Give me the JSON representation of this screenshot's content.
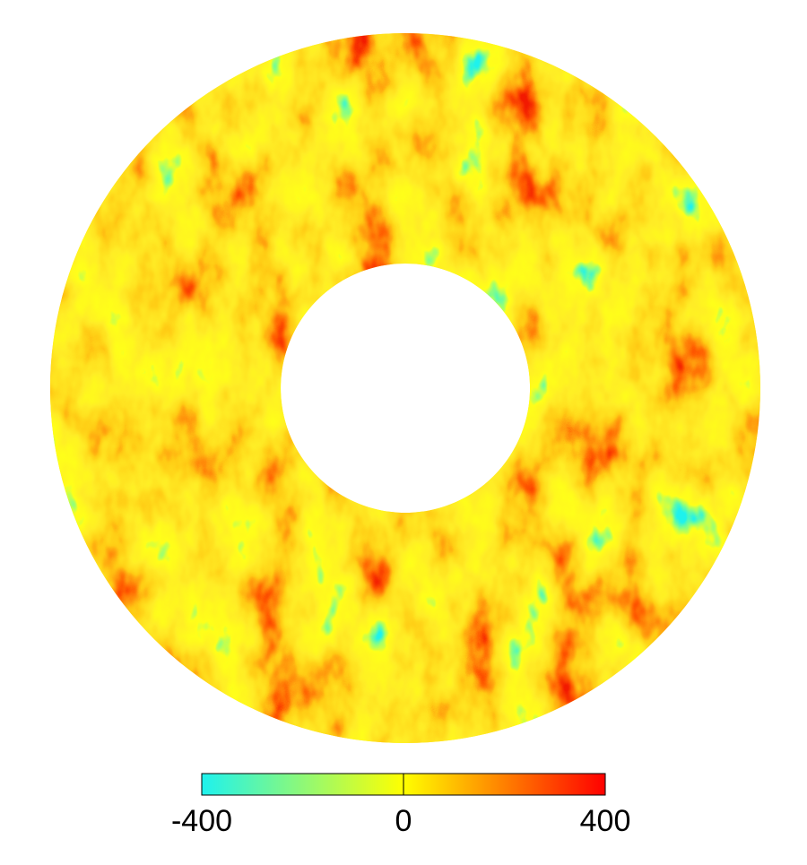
{
  "chart_data": {
    "type": "field",
    "colorbar": {
      "lim": [
        -400,
        400
      ],
      "ticks": [
        -400,
        0,
        400
      ],
      "colors": [
        "#1ef2ee",
        "#ffff00",
        "#ff0000"
      ]
    }
  }
}
